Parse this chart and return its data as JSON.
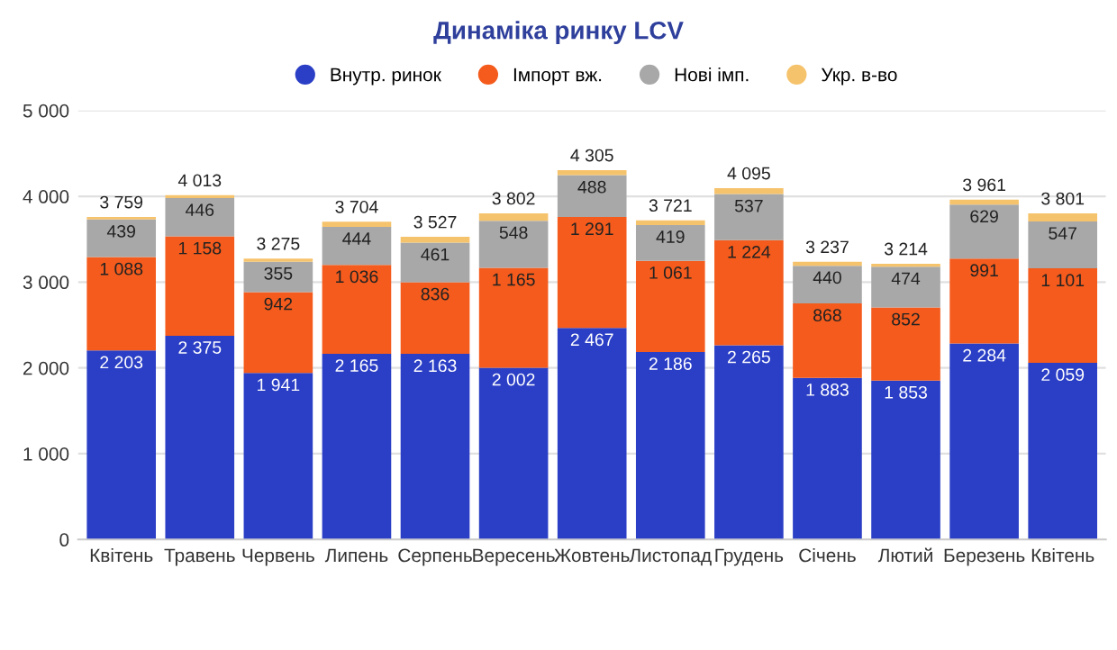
{
  "chart_data": {
    "type": "bar",
    "title": "Динаміка ринку LCV",
    "stacked": true,
    "categories": [
      "Квітень",
      "Травень",
      "Червень",
      "Липень",
      "Серпень",
      "Вересень",
      "Жовтень",
      "Листопад",
      "Грудень",
      "Січень",
      "Лютий",
      "Березень",
      "Квітень"
    ],
    "series": [
      {
        "name": "Внутр. ринок",
        "color": "#2b3fc6",
        "values": [
          2203,
          2375,
          1941,
          2165,
          2163,
          2002,
          2467,
          2186,
          2265,
          1883,
          1853,
          2284,
          2059
        ],
        "value_labels": [
          "2 203",
          "2 375",
          "1 941",
          "2 165",
          "2 163",
          "2 002",
          "2 467",
          "2 186",
          "2 265",
          "1 883",
          "1 853",
          "2 284",
          "2 059"
        ]
      },
      {
        "name": "Імпорт вж.",
        "color": "#f45b1c",
        "values": [
          1088,
          1158,
          942,
          1036,
          836,
          1165,
          1291,
          1061,
          1224,
          868,
          852,
          991,
          1101
        ],
        "value_labels": [
          "1 088",
          "1 158",
          "942",
          "1 036",
          "836",
          "1 165",
          "1 291",
          "1 061",
          "1 224",
          "868",
          "852",
          "991",
          "1 101"
        ]
      },
      {
        "name": "Нові імп.",
        "color": "#a8a8a8",
        "values": [
          439,
          446,
          355,
          444,
          461,
          548,
          488,
          419,
          537,
          440,
          474,
          629,
          547
        ],
        "value_labels": [
          "439",
          "446",
          "355",
          "444",
          "461",
          "548",
          "488",
          "419",
          "537",
          "440",
          "474",
          "629",
          "547"
        ]
      },
      {
        "name": "Укр. в-во",
        "color": "#f6c36d",
        "values": [
          29,
          34,
          37,
          59,
          67,
          87,
          59,
          55,
          69,
          46,
          35,
          57,
          94
        ]
      }
    ],
    "totals": [
      "3 759",
      "4 013",
      "3 275",
      "3 704",
      "3 527",
      "3 802",
      "4 305",
      "3 721",
      "4 095",
      "3 237",
      "3 214",
      "3 961",
      "3 801"
    ],
    "ylim": [
      0,
      5000
    ],
    "yticks": [
      0,
      {
        "value": 1000,
        "label": "1 000"
      },
      {
        "value": 2000,
        "label": "2 000"
      },
      {
        "value": 3000,
        "label": "3 000"
      },
      {
        "value": 4000,
        "label": "4 000"
      },
      {
        "value": 5000,
        "label": "5 000"
      }
    ],
    "grid": "y",
    "legend": "top"
  }
}
